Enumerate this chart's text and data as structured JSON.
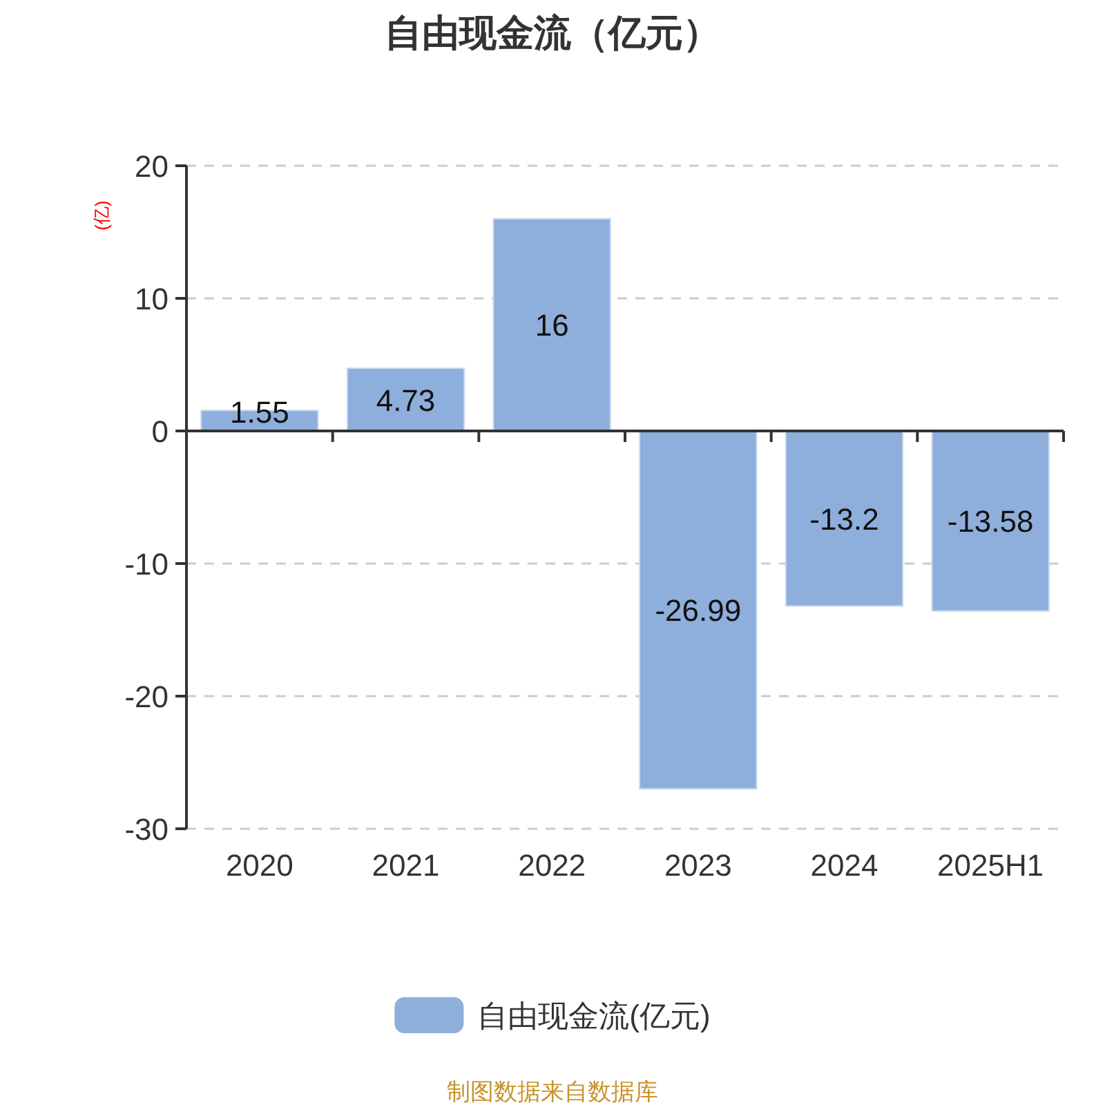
{
  "chart_data": {
    "type": "bar",
    "title": "自由现金流（亿元）",
    "ylabel": "(亿)",
    "categories": [
      "2020",
      "2021",
      "2022",
      "2023",
      "2024",
      "2025H1"
    ],
    "series": [
      {
        "name": "自由现金流(亿元)",
        "color": "#8eaedb",
        "values": [
          1.55,
          4.73,
          16,
          -26.99,
          -13.2,
          -13.58
        ]
      }
    ],
    "ylim": [
      -30,
      20
    ],
    "yticks": [
      -30,
      -20,
      -10,
      0,
      10,
      20
    ],
    "grid": "y",
    "data_labels": true,
    "legend": "bottom",
    "annotations": [
      "制图数据来自数据库"
    ]
  }
}
